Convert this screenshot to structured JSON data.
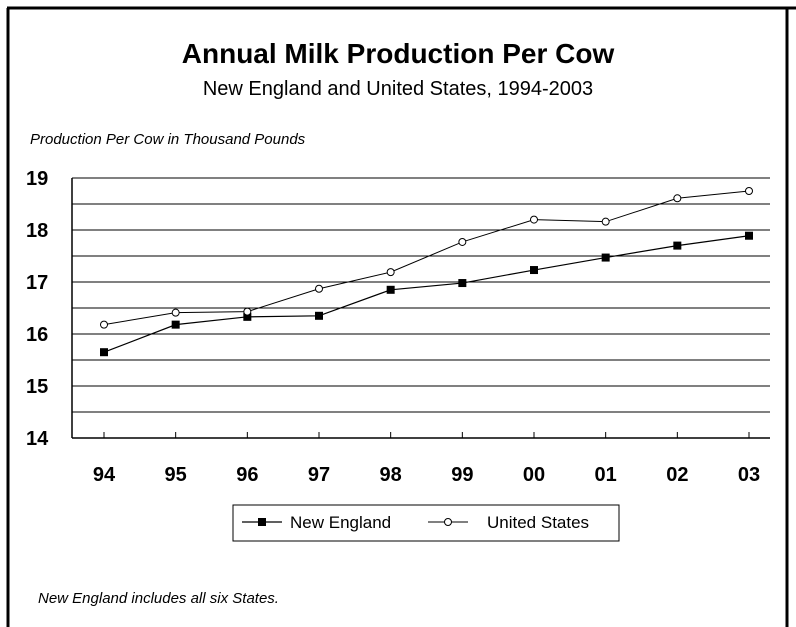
{
  "chart_data": {
    "type": "line",
    "title": "Annual Milk Production Per Cow",
    "subtitle": "New England and United States, 1994-2003",
    "ylabel": "Production Per Cow in Thousand Pounds",
    "xlabel": "",
    "categories": [
      "94",
      "95",
      "96",
      "97",
      "98",
      "99",
      "00",
      "01",
      "02",
      "03"
    ],
    "ylim": [
      14,
      19
    ],
    "yticks": [
      "14",
      "15",
      "16",
      "17",
      "18",
      "19"
    ],
    "grid": true,
    "legend_position": "bottom",
    "series": [
      {
        "name": "New England",
        "marker": "square",
        "color": "#000000",
        "values": [
          15.65,
          16.18,
          16.33,
          16.35,
          16.85,
          16.98,
          17.23,
          17.47,
          17.7,
          17.89
        ]
      },
      {
        "name": "United States",
        "marker": "circle",
        "color": "#000000",
        "values": [
          16.18,
          16.41,
          16.43,
          16.87,
          17.19,
          17.77,
          18.2,
          18.16,
          18.61,
          18.75
        ]
      }
    ],
    "footnote": "New England includes all six States."
  }
}
